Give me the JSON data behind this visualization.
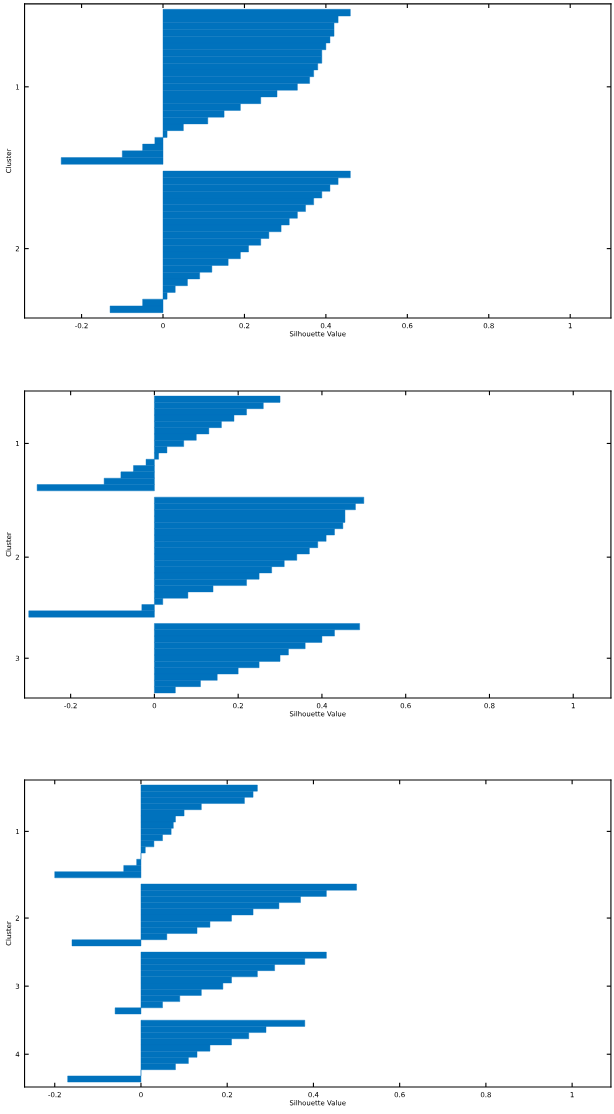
{
  "chart_data": [
    {
      "type": "bar",
      "orientation": "horizontal",
      "xlabel": "Silhouette Value",
      "ylabel": "Cluster",
      "xlim": [
        -0.34,
        1.1
      ],
      "xticks": [
        -0.2,
        0,
        0.2,
        0.4,
        0.6,
        0.8,
        1
      ],
      "grid": false,
      "legend": false,
      "categories": [
        null,
        null,
        null,
        null,
        null,
        null,
        null,
        null,
        null,
        null,
        null,
        "1",
        null,
        null,
        null,
        null,
        null,
        null,
        null,
        null,
        null,
        null,
        null,
        null,
        null,
        null,
        null,
        null,
        null,
        null,
        null,
        null,
        null,
        null,
        null,
        "2",
        null,
        null,
        null,
        null,
        null,
        null,
        null,
        null,
        null
      ],
      "series": [
        {
          "color": "#0072bd",
          "values": [
            0.46,
            0.43,
            0.42,
            0.42,
            0.41,
            0.4,
            0.39,
            0.39,
            0.38,
            0.37,
            0.36,
            0.33,
            0.28,
            0.24,
            0.19,
            0.15,
            0.11,
            0.05,
            0.01,
            -0.02,
            -0.05,
            -0.1,
            -0.25,
            null,
            0.46,
            0.43,
            0.41,
            0.39,
            0.37,
            0.35,
            0.33,
            0.31,
            0.29,
            0.26,
            0.24,
            0.21,
            0.19,
            0.16,
            0.12,
            0.09,
            0.06,
            0.03,
            0.01,
            -0.05,
            -0.13
          ]
        }
      ]
    },
    {
      "type": "bar",
      "orientation": "horizontal",
      "xlabel": "Silhouette Value",
      "ylabel": "Cluster",
      "xlim": [
        -0.31,
        1.09
      ],
      "xticks": [
        -0.2,
        0,
        0.2,
        0.4,
        0.6,
        0.8,
        1
      ],
      "grid": false,
      "legend": false,
      "categories": [
        null,
        null,
        null,
        null,
        null,
        null,
        null,
        "1",
        null,
        null,
        null,
        null,
        null,
        null,
        null,
        null,
        null,
        null,
        null,
        null,
        null,
        null,
        null,
        null,
        null,
        "2",
        null,
        null,
        null,
        null,
        null,
        null,
        null,
        null,
        null,
        null,
        null,
        null,
        null,
        null,
        null,
        "3",
        null,
        null,
        null,
        null,
        null
      ],
      "series": [
        {
          "color": "#0072bd",
          "values": [
            0.3,
            0.26,
            0.22,
            0.19,
            0.16,
            0.13,
            0.1,
            0.07,
            0.03,
            0.01,
            -0.02,
            -0.05,
            -0.08,
            -0.12,
            -0.28,
            null,
            0.5,
            0.48,
            0.455,
            0.455,
            0.45,
            0.43,
            0.41,
            0.39,
            0.37,
            0.34,
            0.31,
            0.28,
            0.25,
            0.22,
            0.14,
            0.08,
            0.02,
            -0.03,
            -0.3,
            null,
            0.49,
            0.43,
            0.4,
            0.36,
            0.32,
            0.3,
            0.25,
            0.2,
            0.15,
            0.11,
            0.05
          ]
        }
      ]
    },
    {
      "type": "bar",
      "orientation": "horizontal",
      "xlabel": "Silhouette Value",
      "ylabel": "Cluster",
      "xlim": [
        -0.27,
        1.09
      ],
      "xticks": [
        -0.2,
        0,
        0.2,
        0.4,
        0.6,
        0.8,
        1
      ],
      "grid": false,
      "legend": false,
      "categories": [
        null,
        null,
        null,
        null,
        null,
        null,
        null,
        "1",
        null,
        null,
        null,
        null,
        null,
        null,
        null,
        null,
        null,
        null,
        null,
        null,
        null,
        "2",
        null,
        null,
        null,
        null,
        null,
        null,
        null,
        null,
        null,
        null,
        "3",
        null,
        null,
        null,
        null,
        null,
        null,
        null,
        null,
        null,
        null,
        "4",
        null,
        null,
        null,
        null
      ],
      "series": [
        {
          "color": "#0072bd",
          "values": [
            0.27,
            0.26,
            0.24,
            0.14,
            0.1,
            0.08,
            0.075,
            0.07,
            0.05,
            0.03,
            0.01,
            0.0,
            -0.01,
            -0.04,
            -0.2,
            null,
            0.5,
            0.43,
            0.37,
            0.32,
            0.26,
            0.21,
            0.16,
            0.13,
            0.06,
            -0.16,
            null,
            0.43,
            0.38,
            0.31,
            0.27,
            0.21,
            0.19,
            0.14,
            0.09,
            0.05,
            -0.06,
            null,
            0.38,
            0.29,
            0.25,
            0.21,
            0.16,
            0.13,
            0.11,
            0.08,
            0.0,
            -0.17
          ]
        }
      ]
    }
  ]
}
